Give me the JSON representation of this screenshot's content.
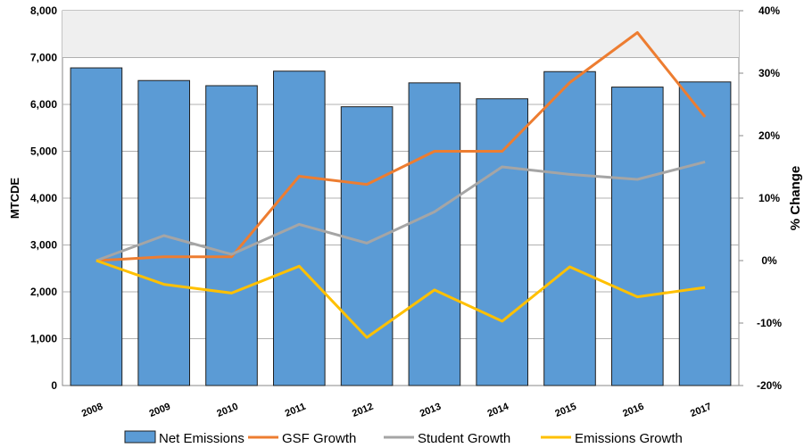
{
  "chart_data": {
    "type": "bar+line",
    "title": "",
    "categories": [
      "2008",
      "2009",
      "2010",
      "2011",
      "2012",
      "2013",
      "2014",
      "2015",
      "2016",
      "2017"
    ],
    "ylabel": "MTCDE",
    "y2label": "% Change",
    "ylim": [
      0,
      8000
    ],
    "y2lim": [
      -20,
      40
    ],
    "yticks": [
      "0",
      "1,000",
      "2,000",
      "3,000",
      "4,000",
      "5,000",
      "6,000",
      "7,000",
      "8,000"
    ],
    "y2ticks": [
      "-20%",
      "-10%",
      "0%",
      "10%",
      "20%",
      "30%",
      "40%"
    ],
    "bars": {
      "name": "Net Emissions",
      "axis": "left",
      "color": "#5b9bd5",
      "values": [
        6780,
        6510,
        6400,
        6710,
        5950,
        6460,
        6120,
        6700,
        6370,
        6480
      ]
    },
    "series": [
      {
        "name": "GSF Growth",
        "axis": "right",
        "color": "#ed7d31",
        "values": [
          0.0,
          0.6,
          0.6,
          13.5,
          12.2,
          17.5,
          17.5,
          28.5,
          36.5,
          23.0
        ]
      },
      {
        "name": "Student Growth",
        "axis": "right",
        "color": "#a5a5a5",
        "values": [
          0.0,
          4.0,
          1.0,
          5.8,
          2.8,
          7.8,
          15.0,
          13.8,
          13.0,
          15.8
        ]
      },
      {
        "name": "Emissions Growth",
        "axis": "right",
        "color": "#ffc000",
        "values": [
          0.0,
          -3.8,
          -5.2,
          -0.9,
          -12.3,
          -4.7,
          -9.7,
          -1.0,
          -5.8,
          -4.3
        ]
      }
    ],
    "grid": true,
    "legend_position": "bottom"
  }
}
